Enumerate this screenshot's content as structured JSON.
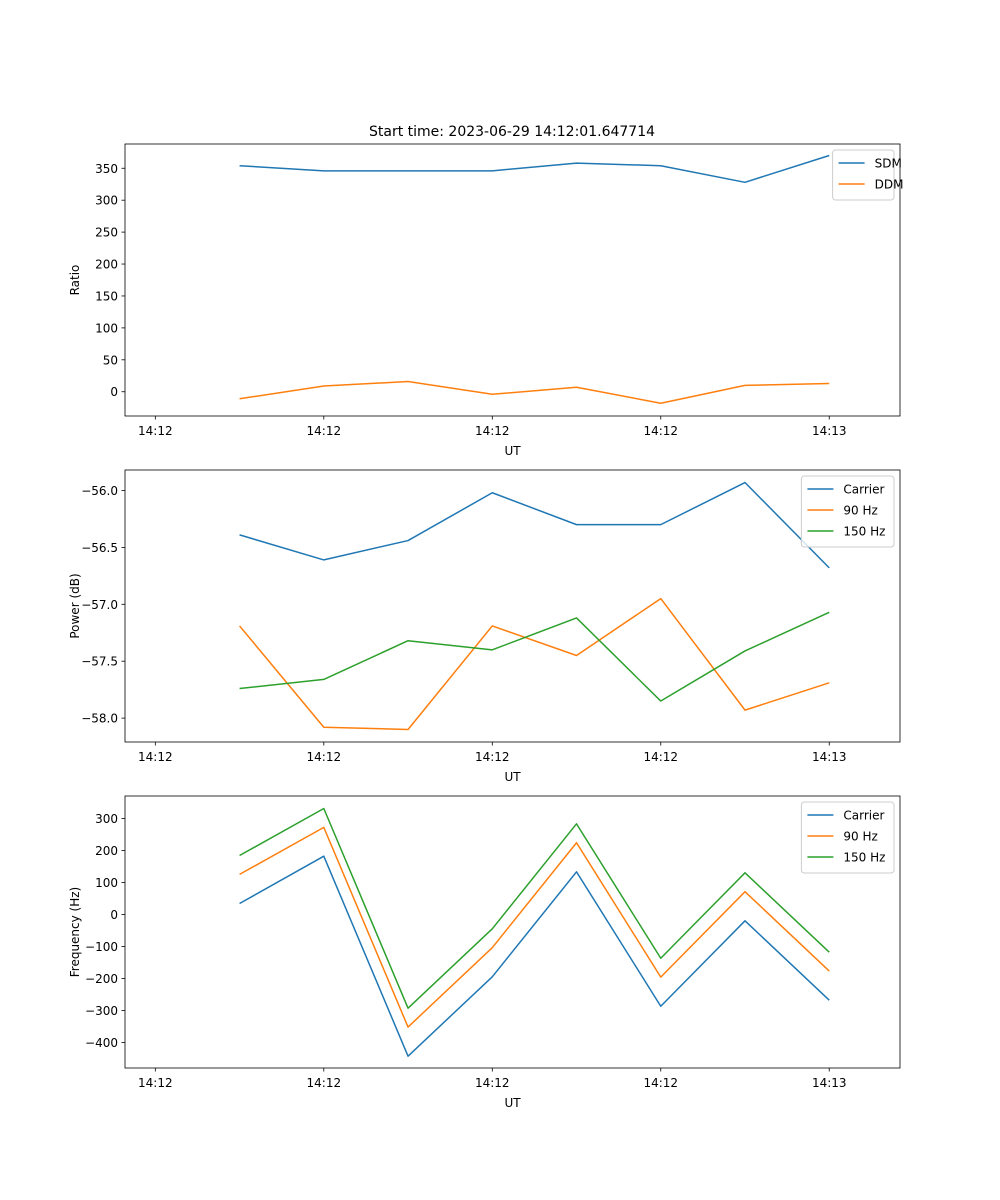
{
  "figure": {
    "title": "Start time: 2023-06-29 14:12:01.647714"
  },
  "colors": {
    "blue": "#1f77b4",
    "orange": "#ff7f0e",
    "green": "#2ca02c"
  },
  "chart_data": [
    {
      "type": "line",
      "title": "Start time: 2023-06-29 14:12:01.647714",
      "xlabel": "UT",
      "ylabel": "Ratio",
      "xlim": [
        -0.36,
        8.84
      ],
      "ylim": [
        -38,
        388
      ],
      "x_ticks": [
        0,
        2,
        4,
        6,
        8
      ],
      "x_tick_labels": [
        "14:12",
        "14:12",
        "14:12",
        "14:12",
        "14:13"
      ],
      "y_ticks": [
        0,
        50,
        100,
        150,
        200,
        250,
        300,
        350
      ],
      "y_tick_labels": [
        "0",
        "50",
        "100",
        "150",
        "200",
        "250",
        "300",
        "350"
      ],
      "x": [
        1,
        2,
        3,
        4,
        5,
        6,
        7,
        8
      ],
      "series": [
        {
          "name": "SDM",
          "color": "#1f77b4",
          "values": [
            354,
            346,
            346,
            346,
            358,
            354,
            328,
            370
          ]
        },
        {
          "name": "DDM",
          "color": "#ff7f0e",
          "values": [
            -11,
            9,
            16,
            -4,
            7,
            -18,
            10,
            13
          ]
        }
      ],
      "legend": "top-right",
      "grid": false
    },
    {
      "type": "line",
      "title": "",
      "xlabel": "UT",
      "ylabel": "Power (dB)",
      "xlim": [
        -0.36,
        8.84
      ],
      "ylim": [
        -58.21,
        -55.82
      ],
      "x_ticks": [
        0,
        2,
        4,
        6,
        8
      ],
      "x_tick_labels": [
        "14:12",
        "14:12",
        "14:12",
        "14:12",
        "14:13"
      ],
      "y_ticks": [
        -58.0,
        -57.5,
        -57.0,
        -56.5,
        -56.0
      ],
      "y_tick_labels": [
        "−58.0",
        "−57.5",
        "−57.0",
        "−56.5",
        "−56.0"
      ],
      "x": [
        1,
        2,
        3,
        4,
        5,
        6,
        7,
        8
      ],
      "series": [
        {
          "name": "Carrier",
          "color": "#1f77b4",
          "values": [
            -56.39,
            -56.61,
            -56.44,
            -56.02,
            -56.3,
            -56.3,
            -55.93,
            -56.68
          ]
        },
        {
          "name": "90 Hz",
          "color": "#ff7f0e",
          "values": [
            -57.19,
            -58.08,
            -58.1,
            -57.19,
            -57.45,
            -56.95,
            -57.93,
            -57.69
          ]
        },
        {
          "name": "150 Hz",
          "color": "#2ca02c",
          "values": [
            -57.74,
            -57.66,
            -57.32,
            -57.4,
            -57.12,
            -57.85,
            -57.41,
            -57.07
          ]
        }
      ],
      "legend": "top-right",
      "grid": false
    },
    {
      "type": "line",
      "title": "",
      "xlabel": "UT",
      "ylabel": "Frequency (Hz)",
      "xlim": [
        -0.36,
        8.84
      ],
      "ylim": [
        -480,
        370
      ],
      "x_ticks": [
        0,
        2,
        4,
        6,
        8
      ],
      "x_tick_labels": [
        "14:12",
        "14:12",
        "14:12",
        "14:12",
        "14:13"
      ],
      "y_ticks": [
        -400,
        -300,
        -200,
        -100,
        0,
        100,
        200,
        300
      ],
      "y_tick_labels": [
        "−400",
        "−300",
        "−200",
        "−100",
        "0",
        "100",
        "200",
        "300"
      ],
      "x": [
        1,
        2,
        3,
        4,
        5,
        6,
        7,
        8
      ],
      "series": [
        {
          "name": "Carrier",
          "color": "#1f77b4",
          "values": [
            34,
            182,
            -443,
            -195,
            133,
            -287,
            -20,
            -268
          ]
        },
        {
          "name": "90 Hz",
          "color": "#ff7f0e",
          "values": [
            125,
            272,
            -352,
            -104,
            224,
            -196,
            71,
            -177
          ]
        },
        {
          "name": "150 Hz",
          "color": "#2ca02c",
          "values": [
            184,
            331,
            -293,
            -45,
            283,
            -137,
            130,
            -118
          ]
        }
      ],
      "legend": "top-right",
      "grid": false
    }
  ]
}
